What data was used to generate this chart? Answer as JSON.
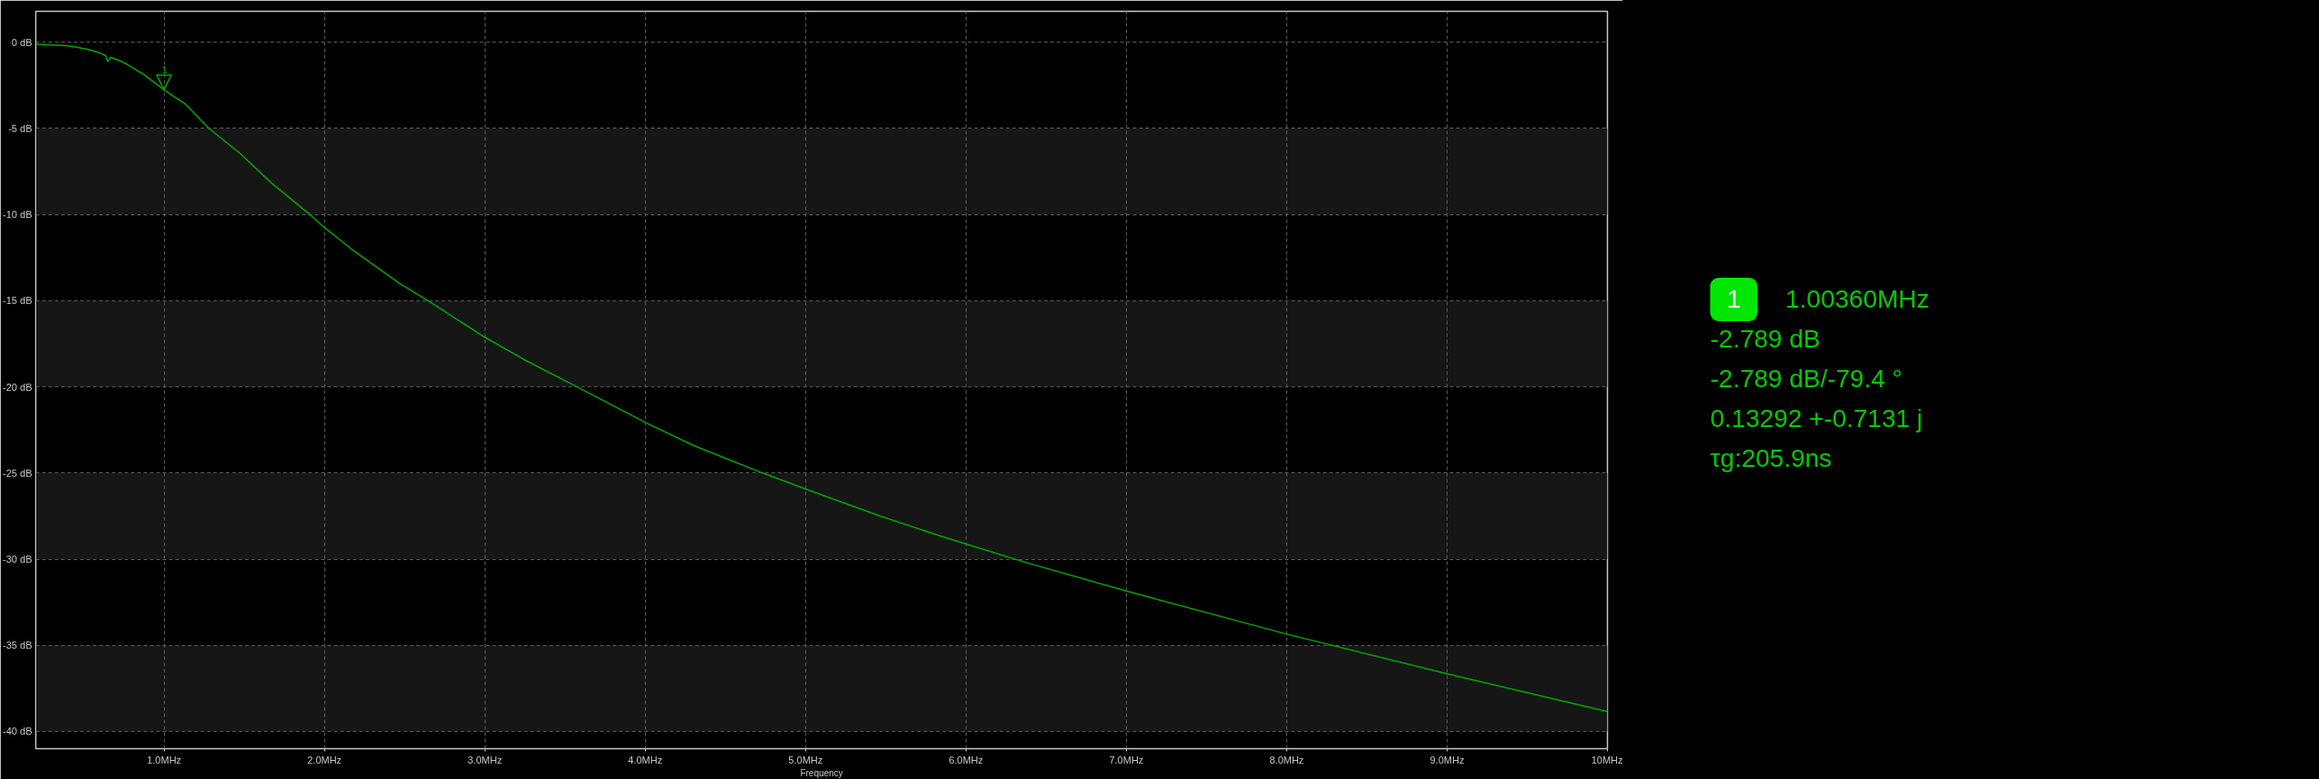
{
  "chart_data": {
    "type": "line",
    "xlabel": "Frequency",
    "color": "#00a800",
    "line_style": "solid",
    "grid": true,
    "x": [
      0.2,
      0.3,
      0.376,
      0.45,
      0.527,
      0.6,
      0.635,
      0.648,
      0.667,
      0.72,
      0.765,
      0.872,
      1.0036,
      1.13,
      1.28,
      1.475,
      1.67,
      1.909,
      2.0,
      2.168,
      2.469,
      2.646,
      3.0,
      3.24,
      3.575,
      4.0,
      4.306,
      4.732,
      5.0,
      5.463,
      5.829,
      6.0,
      6.377,
      7.0,
      8.0,
      9.0,
      10.0
    ],
    "values": [
      -0.1,
      -0.15,
      -0.18,
      -0.28,
      -0.42,
      -0.62,
      -0.76,
      -1.12,
      -0.88,
      -1.05,
      -1.26,
      -1.86,
      -2.79,
      -3.56,
      -5.0,
      -6.46,
      -8.17,
      -10.0,
      -10.75,
      -12.0,
      -14.0,
      -15.0,
      -17.12,
      -18.39,
      -20.0,
      -22.06,
      -23.42,
      -25.0,
      -25.93,
      -27.49,
      -28.62,
      -29.12,
      -30.2,
      -31.85,
      -34.35,
      -36.65,
      -38.85
    ],
    "xlim": [
      0.2,
      10
    ],
    "ylim": [
      -41,
      1.8
    ],
    "xticks": [
      {
        "value": 1,
        "label": "1.0MHz"
      },
      {
        "value": 2,
        "label": "2.0MHz"
      },
      {
        "value": 3,
        "label": "3.0MHz"
      },
      {
        "value": 4,
        "label": "4.0MHz"
      },
      {
        "value": 5,
        "label": "5.0MHz"
      },
      {
        "value": 6,
        "label": "6.0MHz"
      },
      {
        "value": 7,
        "label": "7.0MHz"
      },
      {
        "value": 8,
        "label": "8.0MHz"
      },
      {
        "value": 9,
        "label": "9.0MHz"
      },
      {
        "value": 10,
        "label": "10MHz"
      }
    ],
    "yticks": [
      {
        "value": 0,
        "label": "0 dB"
      },
      {
        "value": -5,
        "label": "-5 dB"
      },
      {
        "value": -10,
        "label": "-10 dB"
      },
      {
        "value": -15,
        "label": "-15 dB"
      },
      {
        "value": -20,
        "label": "-20 dB"
      },
      {
        "value": -25,
        "label": "-25 dB"
      },
      {
        "value": -30,
        "label": "-30 dB"
      },
      {
        "value": -35,
        "label": "-35 dB"
      },
      {
        "value": -40,
        "label": "-40 dB"
      }
    ],
    "bands": [
      {
        "axis": "y",
        "from": -10,
        "to": -5,
        "color": "#161616"
      },
      {
        "axis": "y",
        "from": -20,
        "to": -15,
        "color": "#161616"
      },
      {
        "axis": "y",
        "from": -30,
        "to": -25,
        "color": "#161616"
      },
      {
        "axis": "y",
        "from": -40,
        "to": -35,
        "color": "#161616"
      }
    ],
    "annotations": [
      {
        "text": "1",
        "x": 1.0036,
        "y": -2.789
      },
      "1",
      "1.00360MHz",
      "-2.789 dB",
      "-2.789 dB/-79.4 °",
      "0.13292 +-0.7131 j",
      "τg:205.9ns"
    ]
  }
}
